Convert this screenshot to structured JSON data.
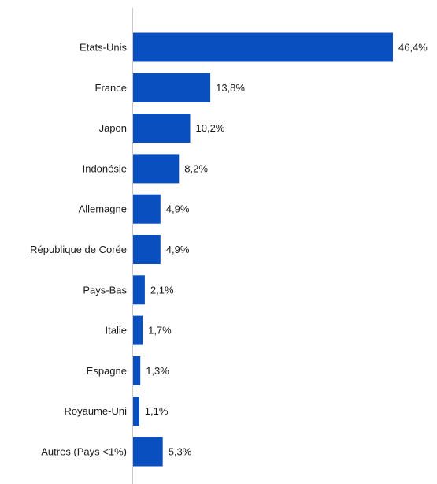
{
  "chart_data": {
    "type": "bar",
    "orientation": "horizontal",
    "categories": [
      "Etats-Unis",
      "France",
      "Japon",
      "Indonésie",
      "Allemagne",
      "République de Corée",
      "Pays-Bas",
      "Italie",
      "Espagne",
      "Royaume-Uni",
      "Autres (Pays <1%)"
    ],
    "values": [
      46.4,
      13.8,
      10.2,
      8.2,
      4.9,
      4.9,
      2.1,
      1.7,
      1.3,
      1.1,
      5.3
    ],
    "value_labels": [
      "46,4%",
      "13,8%",
      "10,2%",
      "8,2%",
      "4,9%",
      "4,9%",
      "2,1%",
      "1,7%",
      "1,3%",
      "1,1%",
      "5,3%"
    ],
    "xlim": [
      0,
      46.4
    ],
    "grid": false,
    "legend": "none",
    "bar_color": "#0a4fbf",
    "axis_color": "#c8c8c8"
  }
}
